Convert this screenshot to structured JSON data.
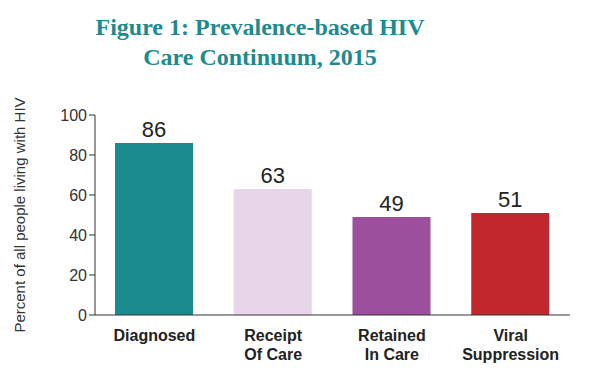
{
  "chart_data": {
    "type": "bar",
    "title": "Figure 1: Prevalence-based HIV Care Continuum, 2015",
    "ylabel": "Percent of all people living with HIV",
    "categories": [
      "Diagnosed",
      "Receipt Of Care",
      "Retained In Care",
      "Viral Suppression"
    ],
    "values": [
      86,
      63,
      49,
      51
    ],
    "colors": [
      "#1a8a8f",
      "#e8d5ea",
      "#9b4f9c",
      "#c1272d"
    ],
    "ylim": [
      0,
      100
    ],
    "yticks": [
      0,
      20,
      40,
      60,
      80,
      100
    ],
    "grid": false,
    "data_labels": true
  }
}
